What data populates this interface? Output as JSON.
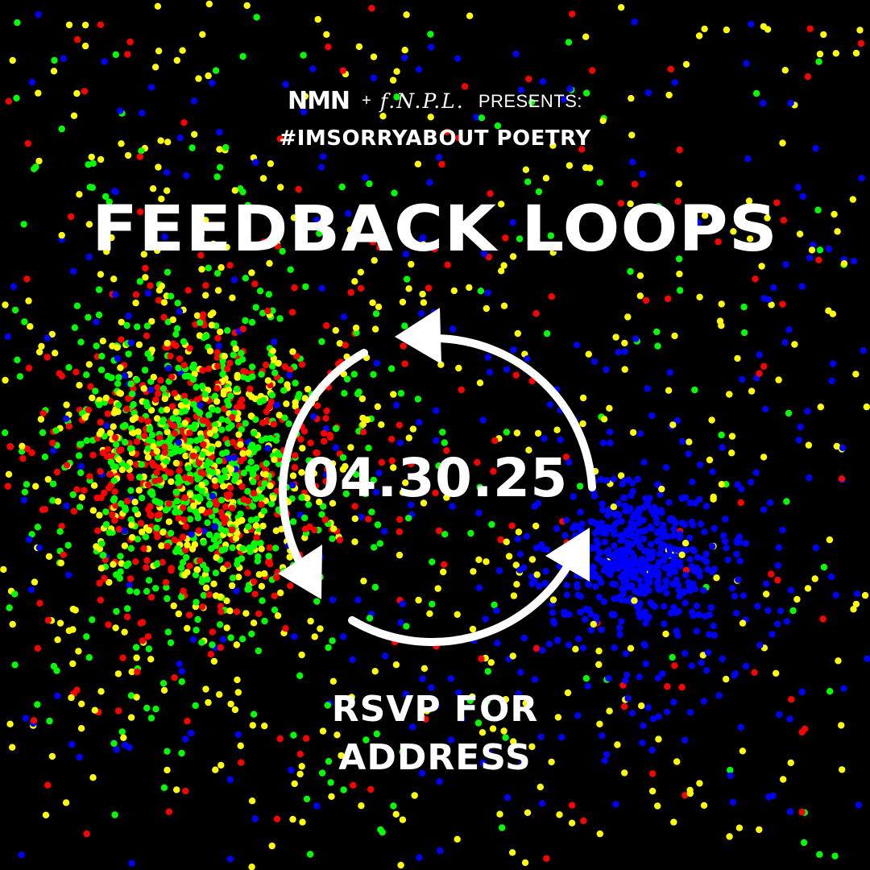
{
  "header": {
    "logo_nmn": "NMN",
    "plus": "+",
    "logo_fnpl": "f.N.P.L.",
    "presents": "PRESENTS:",
    "subtitle": "#IMSORRYABOUT POETRY"
  },
  "event": {
    "title": "FEEDBACK LOOPS",
    "date": "04.30.25",
    "rsvp_line1": "RSVP FOR",
    "rsvp_line2": "ADDRESS"
  },
  "colors": {
    "background": "#000000",
    "text": "#ffffff",
    "dot_red": "#ff0000",
    "dot_green": "#00ff00",
    "dot_yellow": "#ffff00",
    "dot_blue": "#0000ff"
  },
  "icons": {
    "loop": "cycle-arrows-icon"
  }
}
